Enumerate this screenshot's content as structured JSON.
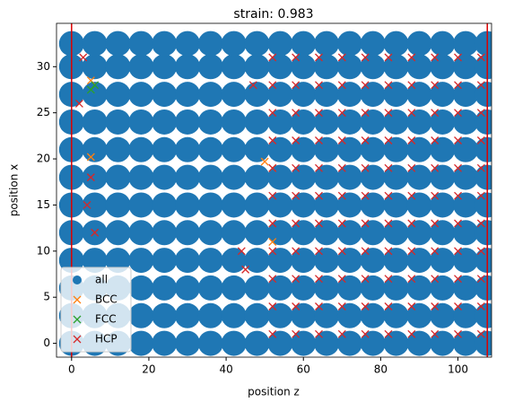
{
  "chart_data": {
    "type": "scatter",
    "title": "strain: 0.983",
    "xlabel": "position z",
    "ylabel": "position x",
    "xlim": [
      -3.9,
      108.7
    ],
    "ylim": [
      -1.5,
      34.7
    ],
    "xticks": [
      0,
      20,
      40,
      60,
      80,
      100
    ],
    "yticks": [
      0,
      5,
      10,
      15,
      20,
      25,
      30
    ],
    "vlines": [
      0,
      107.6
    ],
    "vline_color": "#dd0000",
    "legend": "lower left",
    "series": [
      {
        "name": "all",
        "color": "#1f77b4",
        "marker": "o",
        "x": [
          0,
          0,
          0,
          0,
          0,
          0,
          0,
          0,
          0,
          0,
          0,
          0,
          6,
          6,
          6,
          6,
          6,
          6,
          6,
          6,
          6,
          6,
          6,
          6,
          12,
          12,
          12,
          12,
          12,
          12,
          12,
          12,
          12,
          12,
          12,
          12,
          18,
          18,
          18,
          18,
          18,
          18,
          18,
          18,
          18,
          18,
          18,
          18,
          24,
          24,
          24,
          24,
          24,
          24,
          24,
          24,
          24,
          24,
          24,
          24,
          30,
          30,
          30,
          30,
          30,
          30,
          30,
          30,
          30,
          30,
          30,
          30,
          36,
          36,
          36,
          36,
          36,
          36,
          36,
          36,
          36,
          36,
          36,
          36,
          42,
          42,
          42,
          42,
          42,
          42,
          42,
          42,
          42,
          42,
          42,
          42,
          48,
          48,
          48,
          48,
          48,
          48,
          48,
          48,
          48,
          48,
          48,
          48,
          54,
          54,
          54,
          54,
          54,
          54,
          54,
          54,
          54,
          54,
          54,
          54,
          60,
          60,
          60,
          60,
          60,
          60,
          60,
          60,
          60,
          60,
          60,
          60,
          66,
          66,
          66,
          66,
          66,
          66,
          66,
          66,
          66,
          66,
          66,
          66,
          72,
          72,
          72,
          72,
          72,
          72,
          72,
          72,
          72,
          72,
          72,
          72,
          78,
          78,
          78,
          78,
          78,
          78,
          78,
          78,
          78,
          78,
          78,
          78,
          84,
          84,
          84,
          84,
          84,
          84,
          84,
          84,
          84,
          84,
          84,
          84,
          90,
          90,
          90,
          90,
          90,
          90,
          90,
          90,
          90,
          90,
          90,
          90,
          96,
          96,
          96,
          96,
          96,
          96,
          96,
          96,
          96,
          96,
          96,
          96,
          102,
          102,
          102,
          102,
          102,
          102,
          102,
          102,
          102,
          102,
          102,
          102,
          107.6,
          107.6,
          107.6,
          107.6,
          107.6,
          107.6,
          107.6,
          107.6,
          107.6,
          107.6,
          107.6,
          107.6
        ],
        "y": [
          0,
          3,
          6,
          9,
          12,
          15,
          18,
          21,
          24,
          27,
          30,
          32.5,
          0,
          3,
          6,
          9,
          12,
          15,
          18,
          21,
          24,
          27,
          30,
          32.5,
          0,
          3,
          6,
          9,
          12,
          15,
          18,
          21,
          24,
          27,
          30,
          32.5,
          0,
          3,
          6,
          9,
          12,
          15,
          18,
          21,
          24,
          27,
          30,
          32.5,
          0,
          3,
          6,
          9,
          12,
          15,
          18,
          21,
          24,
          27,
          30,
          32.5,
          0,
          3,
          6,
          9,
          12,
          15,
          18,
          21,
          24,
          27,
          30,
          32.5,
          0,
          3,
          6,
          9,
          12,
          15,
          18,
          21,
          24,
          27,
          30,
          32.5,
          0,
          3,
          6,
          9,
          12,
          15,
          18,
          21,
          24,
          27,
          30,
          32.5,
          0,
          3,
          6,
          9,
          12,
          15,
          18,
          21,
          24,
          27,
          30,
          32.5,
          0,
          3,
          6,
          9,
          12,
          15,
          18,
          21,
          24,
          27,
          30,
          32.5,
          0,
          3,
          6,
          9,
          12,
          15,
          18,
          21,
          24,
          27,
          30,
          32.5,
          0,
          3,
          6,
          9,
          12,
          15,
          18,
          21,
          24,
          27,
          30,
          32.5,
          0,
          3,
          6,
          9,
          12,
          15,
          18,
          21,
          24,
          27,
          30,
          32.5,
          0,
          3,
          6,
          9,
          12,
          15,
          18,
          21,
          24,
          27,
          30,
          32.5,
          0,
          3,
          6,
          9,
          12,
          15,
          18,
          21,
          24,
          27,
          30,
          32.5,
          0,
          3,
          6,
          9,
          12,
          15,
          18,
          21,
          24,
          27,
          30,
          32.5,
          0,
          3,
          6,
          9,
          12,
          15,
          18,
          21,
          24,
          27,
          30,
          32.5,
          0,
          3,
          6,
          9,
          12,
          15,
          18,
          21,
          24,
          27,
          30,
          32.5,
          0,
          3,
          6,
          9,
          12,
          15,
          18,
          21,
          24,
          27,
          30,
          32.5
        ]
      },
      {
        "name": "BCC",
        "color": "#ff7f0e",
        "marker": "x",
        "x": [
          5,
          50,
          52,
          52,
          5
        ],
        "y": [
          20.2,
          19.7,
          19,
          11,
          28.5
        ]
      },
      {
        "name": "FCC",
        "color": "#2ca02c",
        "marker": "x",
        "x": [
          6,
          5
        ],
        "y": [
          28,
          27.5
        ]
      },
      {
        "name": "HCP",
        "color": "#d62728",
        "marker": "x",
        "x": [
          52,
          52,
          52,
          52,
          52,
          52,
          52,
          52,
          52,
          52,
          52,
          58,
          58,
          58,
          58,
          58,
          58,
          58,
          58,
          58,
          58,
          58,
          64,
          64,
          64,
          64,
          64,
          64,
          64,
          64,
          64,
          64,
          64,
          70,
          70,
          70,
          70,
          70,
          70,
          70,
          70,
          70,
          70,
          70,
          76,
          76,
          76,
          76,
          76,
          76,
          76,
          76,
          76,
          76,
          76,
          82,
          82,
          82,
          82,
          82,
          82,
          82,
          82,
          82,
          82,
          82,
          88,
          88,
          88,
          88,
          88,
          88,
          88,
          88,
          88,
          88,
          88,
          94,
          94,
          94,
          94,
          94,
          94,
          94,
          94,
          94,
          94,
          94,
          100,
          100,
          100,
          100,
          100,
          100,
          100,
          100,
          100,
          100,
          100,
          106,
          106,
          106,
          106,
          106,
          106,
          106,
          106,
          106,
          106,
          106,
          2,
          5,
          4,
          47,
          45,
          44,
          3,
          6
        ],
        "y": [
          1,
          4,
          7,
          10,
          13,
          16,
          19,
          22,
          25,
          28,
          31,
          1,
          4,
          7,
          10,
          13,
          16,
          19,
          22,
          25,
          28,
          31,
          1,
          4,
          7,
          10,
          13,
          16,
          19,
          22,
          25,
          28,
          31,
          1,
          4,
          7,
          10,
          13,
          16,
          19,
          22,
          25,
          28,
          31,
          1,
          4,
          7,
          10,
          13,
          16,
          19,
          22,
          25,
          28,
          31,
          1,
          4,
          7,
          10,
          13,
          16,
          19,
          22,
          25,
          28,
          31,
          1,
          4,
          7,
          10,
          13,
          16,
          19,
          22,
          25,
          28,
          31,
          1,
          4,
          7,
          10,
          13,
          16,
          19,
          22,
          25,
          28,
          31,
          1,
          4,
          7,
          10,
          13,
          16,
          19,
          22,
          25,
          28,
          31,
          1,
          4,
          7,
          10,
          13,
          16,
          19,
          22,
          25,
          28,
          31,
          26,
          18,
          15,
          28,
          8,
          10,
          31,
          12
        ]
      }
    ]
  }
}
